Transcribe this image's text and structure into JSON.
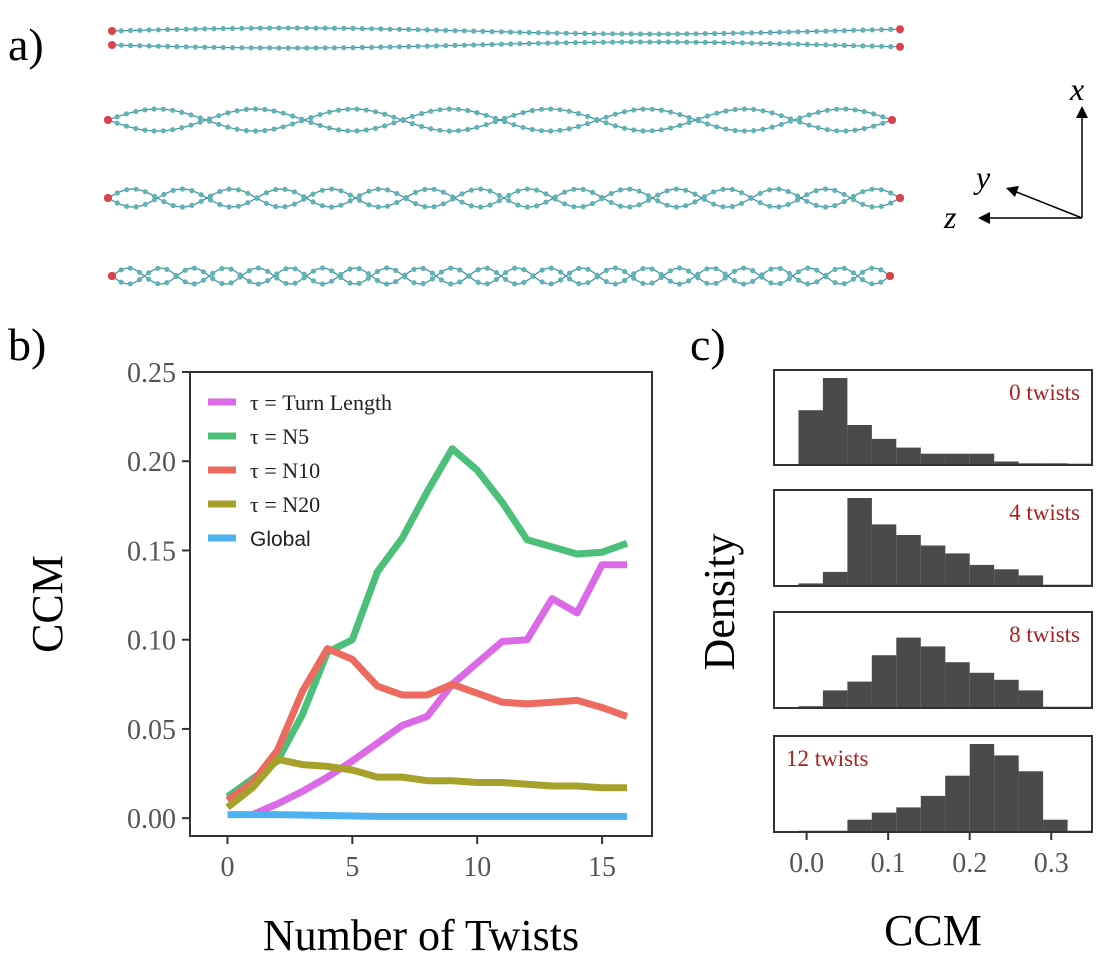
{
  "panel_a": {
    "label": "a)",
    "axes": {
      "x": "x",
      "y": "y",
      "z": "z"
    },
    "colors": {
      "bead": "#5fb3b8",
      "end": "#d9434a"
    }
  },
  "panel_b": {
    "label": "b)"
  },
  "panel_c": {
    "label": "c)"
  },
  "chart_data": [
    {
      "type": "line",
      "title": "",
      "xlabel": "Number of Twists",
      "ylabel": "CCM",
      "xlim": [
        -1.5,
        17
      ],
      "ylim": [
        -0.01,
        0.25
      ],
      "xticks": [
        "0",
        "5",
        "10",
        "15"
      ],
      "xtick_values": [
        0,
        5,
        10,
        15
      ],
      "yticks": [
        "0.00",
        "0.05",
        "0.10",
        "0.15",
        "0.20",
        "0.25"
      ],
      "ytick_values": [
        0,
        0.05,
        0.1,
        0.15,
        0.2,
        0.25
      ],
      "legend_position": "top-left",
      "series": [
        {
          "name": "τ = Turn Length",
          "color": "#dc6ae6",
          "x": [
            1,
            2,
            3,
            4,
            5,
            6,
            7,
            8,
            9,
            10,
            11,
            12,
            13,
            14,
            15,
            16
          ],
          "values": [
            0.002,
            0.008,
            0.015,
            0.023,
            0.032,
            0.042,
            0.052,
            0.057,
            0.075,
            0.087,
            0.099,
            0.1,
            0.123,
            0.115,
            0.142,
            0.142
          ]
        },
        {
          "name": "τ = N5",
          "color": "#4cc07a",
          "x": [
            0,
            1,
            2,
            3,
            4,
            5,
            6,
            7,
            8,
            9,
            10,
            11,
            12,
            13,
            14,
            15,
            16
          ],
          "values": [
            0.012,
            0.022,
            0.032,
            0.058,
            0.093,
            0.1,
            0.138,
            0.157,
            0.183,
            0.207,
            0.195,
            0.177,
            0.156,
            0.152,
            0.148,
            0.149,
            0.154
          ]
        },
        {
          "name": "τ = N10",
          "color": "#ec6a60",
          "x": [
            0,
            1,
            2,
            3,
            4,
            5,
            6,
            7,
            8,
            9,
            10,
            11,
            12,
            13,
            14,
            15,
            16
          ],
          "values": [
            0.01,
            0.02,
            0.038,
            0.071,
            0.095,
            0.089,
            0.074,
            0.069,
            0.069,
            0.075,
            0.07,
            0.065,
            0.064,
            0.065,
            0.066,
            0.062,
            0.057
          ]
        },
        {
          "name": "τ = N20",
          "color": "#a6a12a",
          "x": [
            0,
            1,
            2,
            3,
            4,
            5,
            6,
            7,
            8,
            9,
            10,
            11,
            12,
            13,
            14,
            15,
            16
          ],
          "values": [
            0.006,
            0.017,
            0.033,
            0.03,
            0.029,
            0.027,
            0.023,
            0.023,
            0.021,
            0.021,
            0.02,
            0.02,
            0.019,
            0.018,
            0.018,
            0.017,
            0.017
          ]
        },
        {
          "name": "Global",
          "color": "#4eb1f0",
          "x": [
            0,
            2,
            4,
            6,
            8,
            10,
            12,
            14,
            16
          ],
          "values": [
            0.002,
            0.002,
            0.0015,
            0.001,
            0.001,
            0.001,
            0.001,
            0.001,
            0.001
          ]
        }
      ]
    },
    {
      "type": "bar",
      "subtype": "histogram-stack",
      "xlabel": "CCM",
      "ylabel": "Density",
      "xlim": [
        -0.04,
        0.35
      ],
      "xticks": [
        "0.0",
        "0.1",
        "0.2",
        "0.3"
      ],
      "xtick_values": [
        0,
        0.1,
        0.2,
        0.3
      ],
      "bin_edges": [
        -0.01,
        0.02,
        0.05,
        0.08,
        0.11,
        0.14,
        0.17,
        0.2,
        0.23,
        0.26,
        0.29,
        0.32,
        0.35
      ],
      "bar_color": "#4a4a4a",
      "panels": [
        {
          "label": "0 twists",
          "label_position": "top-right",
          "values": [
            0.63,
            1,
            0.46,
            0.3,
            0.2,
            0.13,
            0.13,
            0.13,
            0.04,
            0.02,
            0.02,
            0.0
          ]
        },
        {
          "label": "4 twists",
          "label_position": "top-right",
          "values": [
            0.03,
            0.16,
            1,
            0.7,
            0.58,
            0.46,
            0.37,
            0.24,
            0.19,
            0.12,
            0.0,
            0.0
          ]
        },
        {
          "label": "8 twists",
          "label_position": "top-right",
          "values": [
            0.02,
            0.2,
            0.3,
            0.6,
            0.8,
            0.7,
            0.52,
            0.4,
            0.32,
            0.2,
            0.0,
            0.0
          ]
        },
        {
          "label": "12 twists",
          "label_position": "top-left",
          "values": [
            0.0,
            0.0,
            0.14,
            0.22,
            0.28,
            0.41,
            0.64,
            1,
            0.87,
            0.69,
            0.14,
            0.0
          ]
        }
      ]
    }
  ]
}
